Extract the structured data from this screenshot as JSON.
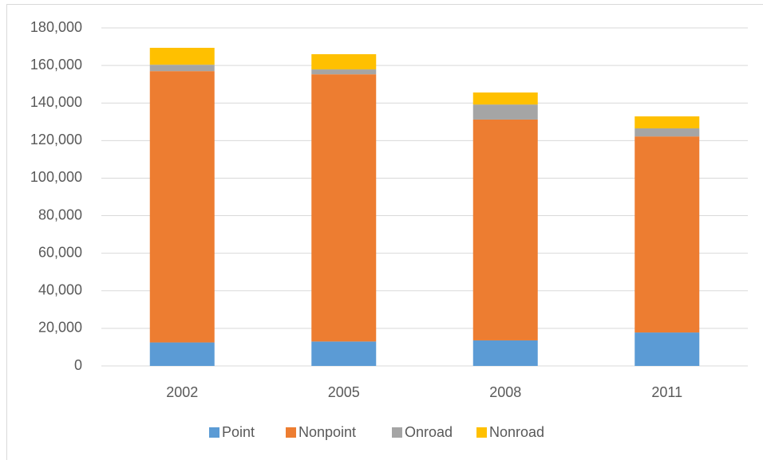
{
  "chart_data": {
    "type": "stacked_bar",
    "categories": [
      "2002",
      "2005",
      "2008",
      "2011"
    ],
    "series": [
      {
        "name": "Point",
        "color": "#5b9bd5",
        "values": [
          12500,
          13000,
          13600,
          17800
        ]
      },
      {
        "name": "Nonpoint",
        "color": "#ed7d31",
        "values": [
          144500,
          142300,
          117600,
          104400
        ]
      },
      {
        "name": "Onroad",
        "color": "#a5a5a5",
        "values": [
          3400,
          2600,
          8000,
          4300
        ]
      },
      {
        "name": "Nonroad",
        "color": "#ffc000",
        "values": [
          9000,
          8100,
          6400,
          6400
        ]
      }
    ],
    "ylim": [
      0,
      180000
    ],
    "yticks": [
      0,
      {
        "value": 20000,
        "label": "20,000"
      },
      {
        "value": 40000,
        "label": "40,000"
      },
      {
        "value": 60000,
        "label": "60,000"
      },
      {
        "value": 80000,
        "label": "80,000"
      },
      {
        "value": 100000,
        "label": "100,000"
      },
      {
        "value": 120000,
        "label": "120,000"
      },
      {
        "value": 140000,
        "label": "140,000"
      },
      {
        "value": 160000,
        "label": "160,000"
      },
      {
        "value": 180000,
        "label": "180,000"
      }
    ],
    "grid": true,
    "legend": "bottom"
  }
}
